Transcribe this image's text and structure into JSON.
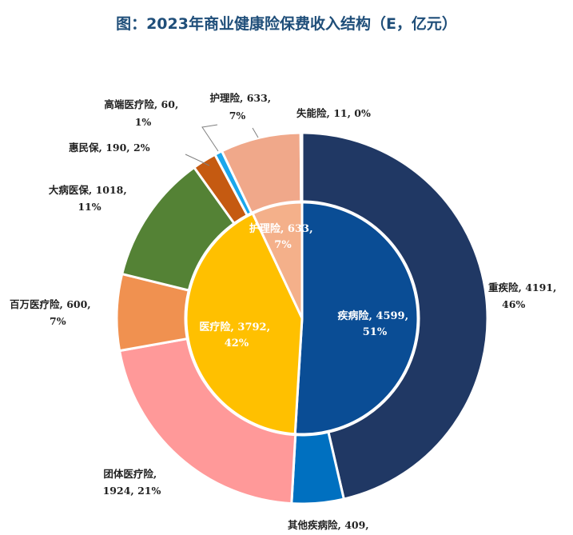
{
  "title": "图：2023年商业健康险保费收入结构（E，亿元）",
  "chart_data": {
    "type": "pie",
    "variant": "nested-donut",
    "title": "图：2023年商业健康险保费收入结构（E，亿元）",
    "inner": {
      "categories": [
        "疾病险",
        "医疗险",
        "护理险"
      ],
      "values": [
        4599,
        3792,
        633
      ],
      "percents": [
        "51%",
        "42%",
        "7%"
      ],
      "colors": [
        "#0A4D95",
        "#FFC000",
        "#F4B08A"
      ]
    },
    "outer": {
      "categories": [
        "重疾险",
        "其他疾病险",
        "团体医疗险",
        "百万医疗险",
        "大病医保",
        "惠民保",
        "高端医疗险",
        "护理险",
        "失能险"
      ],
      "values": [
        4191,
        409,
        1924,
        600,
        1018,
        190,
        60,
        633,
        11
      ],
      "percents": [
        "46%",
        "",
        "21%",
        "7%",
        "11%",
        "2%",
        "1%",
        "7%",
        "0%"
      ],
      "colors": [
        "#203864",
        "#0070C0",
        "#FF9999",
        "#F09150",
        "#548235",
        "#C55A11",
        "#1AA7EC",
        "#F0A88A",
        "#F2F2F2"
      ]
    },
    "labels": {
      "inner": [
        {
          "line1": "疾病险, 4599,",
          "line2": "51%"
        },
        {
          "line1": "医疗险, 3792,",
          "line2": "42%"
        },
        {
          "line1": "护理险, 633,",
          "line2": "7%"
        }
      ],
      "outer": [
        {
          "line1": "重疾险, 4191,",
          "line2": "46%"
        },
        {
          "line1": "其他疾病险, 409,",
          "line2": ""
        },
        {
          "line1": "团体医疗险,",
          "line2": "1924, 21%"
        },
        {
          "line1": "百万医疗险, 600,",
          "line2": "7%"
        },
        {
          "line1": "大病医保, 1018,",
          "line2": "11%"
        },
        {
          "line1": "惠民保, 190, 2%",
          "line2": ""
        },
        {
          "line1": "高端医疗险, 60,",
          "line2": "1%"
        },
        {
          "line1": "护理险, 633,",
          "line2": "7%"
        },
        {
          "line1": "失能险, 11, 0%",
          "line2": ""
        }
      ]
    }
  }
}
